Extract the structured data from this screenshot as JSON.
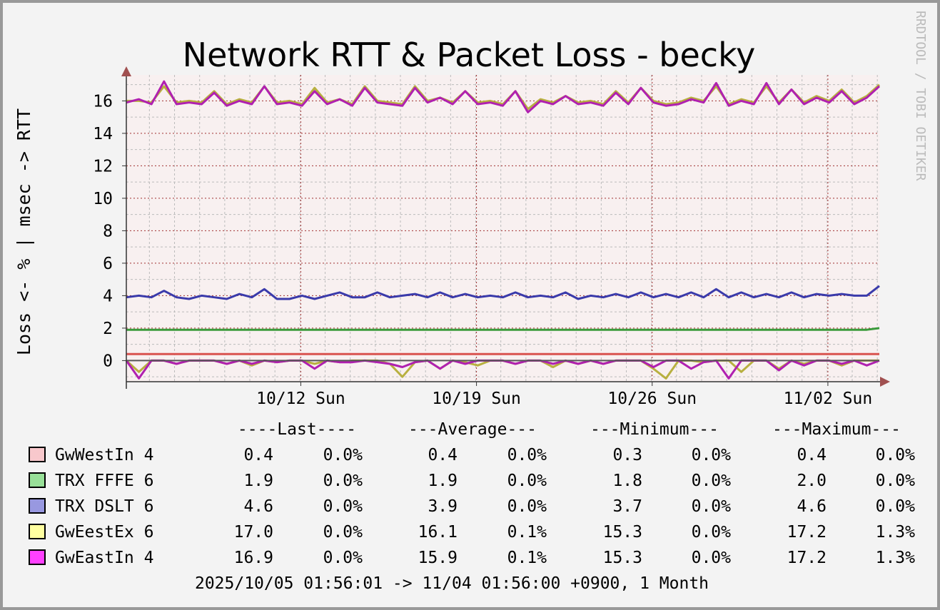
{
  "chart_data": {
    "type": "line",
    "title": "Network RTT & Packet Loss - becky",
    "y_label": "Loss <- % | msec -> RTT",
    "watermark": "RRDTOOL / TOBI OETIKER",
    "footer": "2025/10/05 01:56:01 -> 11/04 01:56:00 +0900, 1 Month",
    "stat_headers": [
      "----Last----",
      "---Average---",
      "---Minimum---",
      "---Maximum---"
    ],
    "xlim": [
      0,
      60
    ],
    "xticks": [
      {
        "value": 13.9,
        "label": "10/12 Sun"
      },
      {
        "value": 27.9,
        "label": "10/19 Sun"
      },
      {
        "value": 41.9,
        "label": "10/26 Sun"
      },
      {
        "value": 55.9,
        "label": "11/02 Sun"
      }
    ],
    "xminor": [
      1.84,
      3.84,
      5.84,
      7.84,
      9.84,
      11.84,
      13.84,
      15.84,
      17.84,
      19.84,
      21.84,
      23.84,
      25.84,
      27.84,
      29.84,
      31.84,
      33.84,
      35.84,
      37.84,
      39.84,
      41.84,
      43.84,
      45.84,
      47.84,
      49.84,
      51.84,
      53.84,
      55.84,
      57.84,
      59.84
    ],
    "ylim": [
      -1.3,
      17.6
    ],
    "yticks": [
      0,
      2,
      4,
      6,
      8,
      10,
      12,
      14,
      16
    ],
    "yminor": [
      -1,
      1,
      3,
      5,
      7,
      9,
      11,
      13,
      15,
      17
    ],
    "grid": true,
    "series": [
      {
        "name": "GwWestIn 4",
        "color": "#d9534f",
        "swatch": "#f8c8cc",
        "values": [
          0.4,
          0.4,
          0.4,
          0.4,
          0.4,
          0.4,
          0.4,
          0.4,
          0.4,
          0.4,
          0.4,
          0.4,
          0.4,
          0.4,
          0.4,
          0.4,
          0.4,
          0.4,
          0.4,
          0.4,
          0.4,
          0.4,
          0.4,
          0.4,
          0.4,
          0.4,
          0.4,
          0.4,
          0.4,
          0.4,
          0.4,
          0.4,
          0.4,
          0.4,
          0.4,
          0.4,
          0.4,
          0.4,
          0.4,
          0.4,
          0.4,
          0.4,
          0.4,
          0.4,
          0.4,
          0.4,
          0.4,
          0.4,
          0.4,
          0.4,
          0.4,
          0.4,
          0.4,
          0.4,
          0.4,
          0.4,
          0.4,
          0.4,
          0.4,
          0.4,
          0.4
        ],
        "stats": [
          "0.4",
          "0.0%",
          "0.4",
          "0.0%",
          "0.3",
          "0.0%",
          "0.4",
          "0.0%"
        ]
      },
      {
        "name": "TRX FFFE 6",
        "color": "#3a9a3a",
        "swatch": "#98e098",
        "values": [
          1.9,
          1.9,
          1.9,
          1.9,
          1.9,
          1.9,
          1.9,
          1.9,
          1.9,
          1.9,
          1.9,
          1.9,
          1.9,
          1.9,
          1.9,
          1.9,
          1.9,
          1.9,
          1.9,
          1.9,
          1.9,
          1.9,
          1.9,
          1.9,
          1.9,
          1.9,
          1.9,
          1.9,
          1.9,
          1.9,
          1.9,
          1.9,
          1.9,
          1.9,
          1.9,
          1.9,
          1.9,
          1.9,
          1.9,
          1.9,
          1.9,
          1.9,
          1.9,
          1.9,
          1.9,
          1.9,
          1.9,
          1.9,
          1.9,
          1.9,
          1.9,
          1.9,
          1.9,
          1.9,
          1.9,
          1.9,
          1.9,
          1.9,
          1.9,
          1.9,
          2.0
        ],
        "stats": [
          "1.9",
          "0.0%",
          "1.9",
          "0.0%",
          "1.8",
          "0.0%",
          "2.0",
          "0.0%"
        ]
      },
      {
        "name": "TRX DSLT 6",
        "color": "#3a3aaa",
        "swatch": "#9898e0",
        "values": [
          3.9,
          4.0,
          3.9,
          4.3,
          3.9,
          3.8,
          4.0,
          3.9,
          3.8,
          4.1,
          3.9,
          4.4,
          3.8,
          3.8,
          4.0,
          3.8,
          4.0,
          4.2,
          3.9,
          3.9,
          4.2,
          3.9,
          4.0,
          4.1,
          3.9,
          4.2,
          3.9,
          4.1,
          3.9,
          4.0,
          3.9,
          4.2,
          3.9,
          4.0,
          3.9,
          4.2,
          3.8,
          4.0,
          3.9,
          4.1,
          3.9,
          4.2,
          3.9,
          4.1,
          3.9,
          4.2,
          3.9,
          4.4,
          3.9,
          4.2,
          3.9,
          4.1,
          3.9,
          4.2,
          3.9,
          4.1,
          4.0,
          4.1,
          4.0,
          4.0,
          4.6
        ],
        "stats": [
          "4.6",
          "0.0%",
          "3.9",
          "0.0%",
          "3.7",
          "0.0%",
          "4.6",
          "0.0%"
        ]
      },
      {
        "name": "GwEestEx 6",
        "color": "#b8b040",
        "swatch": "#ffffa0",
        "values": [
          16.0,
          16.0,
          15.9,
          16.9,
          15.9,
          16.0,
          15.9,
          16.6,
          15.8,
          16.1,
          15.9,
          16.9,
          15.9,
          16.0,
          15.8,
          16.8,
          15.9,
          16.1,
          15.8,
          16.9,
          16.0,
          15.9,
          15.8,
          16.9,
          16.0,
          16.2,
          15.9,
          16.6,
          15.9,
          16.0,
          15.8,
          16.6,
          15.5,
          16.1,
          15.9,
          16.3,
          15.9,
          16.0,
          15.8,
          16.6,
          15.9,
          16.8,
          16.0,
          15.8,
          15.9,
          16.2,
          16.0,
          16.9,
          15.8,
          16.1,
          15.9,
          16.9,
          15.9,
          16.7,
          15.9,
          16.3,
          16.0,
          16.7,
          15.9,
          16.3,
          17.0
        ],
        "loss": [
          0,
          -0.7,
          0,
          0,
          -0.2,
          0,
          0,
          0,
          -0.2,
          0,
          -0.3,
          0,
          -0.1,
          0,
          0,
          -0.2,
          0,
          -0.1,
          0,
          0,
          0,
          -0.2,
          -1.0,
          -0.1,
          0,
          -0.5,
          0,
          -0.1,
          -0.3,
          0,
          0,
          -0.2,
          0,
          0,
          -0.4,
          0,
          -0.2,
          0,
          -0.2,
          0,
          0,
          0,
          -0.5,
          -1.1,
          0,
          0,
          -0.1,
          0,
          0,
          -0.7,
          0,
          0,
          -0.5,
          0,
          -0.2,
          0,
          0,
          -0.3,
          0,
          0,
          0
        ],
        "stats": [
          "17.0",
          "0.0%",
          "16.1",
          "0.1%",
          "15.3",
          "0.0%",
          "17.2",
          "1.3%"
        ]
      },
      {
        "name": "GwEastIn 4",
        "color": "#b020b0",
        "swatch": "#ff40ff",
        "values": [
          15.9,
          16.1,
          15.8,
          17.2,
          15.8,
          15.9,
          15.8,
          16.5,
          15.7,
          16.0,
          15.8,
          16.9,
          15.8,
          15.9,
          15.7,
          16.6,
          15.8,
          16.1,
          15.7,
          16.8,
          15.9,
          15.8,
          15.7,
          16.8,
          15.9,
          16.2,
          15.8,
          16.6,
          15.8,
          15.9,
          15.7,
          16.6,
          15.3,
          16.0,
          15.8,
          16.3,
          15.8,
          15.9,
          15.7,
          16.5,
          15.8,
          16.8,
          15.9,
          15.7,
          15.8,
          16.1,
          15.9,
          17.1,
          15.7,
          16.0,
          15.8,
          17.1,
          15.8,
          16.7,
          15.8,
          16.2,
          15.9,
          16.6,
          15.8,
          16.2,
          16.9
        ],
        "loss": [
          0,
          -1.1,
          0,
          0,
          -0.2,
          0,
          0,
          0,
          -0.2,
          0,
          -0.2,
          0,
          -0.1,
          0,
          0,
          -0.5,
          0,
          -0.1,
          -0.1,
          0,
          -0.1,
          -0.2,
          -0.4,
          -0.1,
          0,
          -0.5,
          0,
          -0.2,
          0,
          0,
          0,
          -0.2,
          0,
          0,
          -0.2,
          0,
          -0.2,
          0,
          -0.2,
          0,
          0,
          0,
          -0.4,
          0,
          0,
          -0.5,
          -0.1,
          0,
          -1.1,
          0,
          0,
          0,
          -0.6,
          0,
          -0.3,
          0,
          0,
          -0.2,
          0,
          -0.3,
          0
        ],
        "stats": [
          "16.9",
          "0.0%",
          "15.9",
          "0.1%",
          "15.3",
          "0.0%",
          "17.2",
          "1.3%"
        ]
      }
    ]
  }
}
